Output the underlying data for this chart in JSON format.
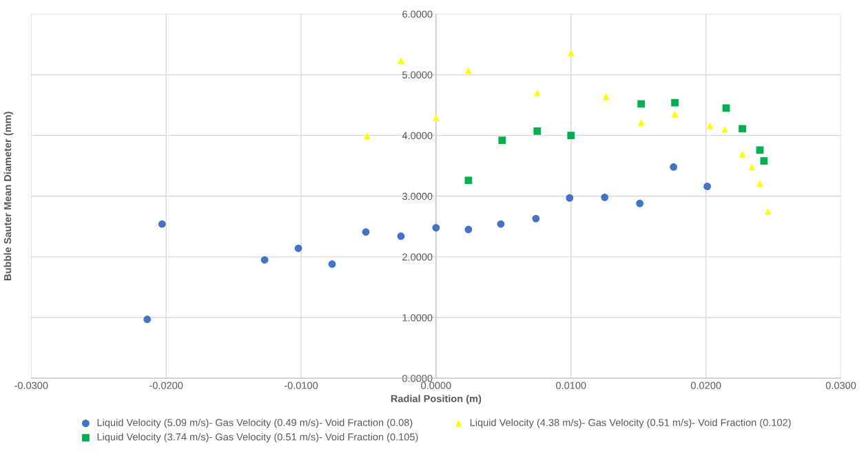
{
  "chart_data": {
    "type": "scatter",
    "xlabel": "Radial Position (m)",
    "ylabel": "Bubble Sauter Mean Diameter (mm)",
    "xlim": [
      -0.03,
      0.03
    ],
    "ylim": [
      0,
      6
    ],
    "xticks": [
      {
        "value": -0.03,
        "label": "-0.0300"
      },
      {
        "value": -0.02,
        "label": "-0.0200"
      },
      {
        "value": -0.01,
        "label": "-0.0100"
      },
      {
        "value": 0,
        "label": "0.0000"
      },
      {
        "value": 0.01,
        "label": "0.0100"
      },
      {
        "value": 0.02,
        "label": "0.0200"
      },
      {
        "value": 0.03,
        "label": "0.0300"
      }
    ],
    "yticks": [
      {
        "value": 0,
        "label": "0.0000"
      },
      {
        "value": 1,
        "label": "1.0000"
      },
      {
        "value": 2,
        "label": "2.0000"
      },
      {
        "value": 3,
        "label": "3.0000"
      },
      {
        "value": 4,
        "label": "4.0000"
      },
      {
        "value": 5,
        "label": "5.0000"
      },
      {
        "value": 6,
        "label": "6.0000"
      }
    ],
    "grid": true,
    "legend": "bottom",
    "series": [
      {
        "name": "Liquid Velocity (5.09 m/s)- Gas Velocity (0.49 m/s)- Void Fraction (0.08)",
        "color": "#4472c4",
        "marker": "circle",
        "x": [
          -0.0214,
          -0.0203,
          -0.0127,
          -0.0102,
          -0.0077,
          -0.0052,
          -0.0026,
          0.0,
          0.0024,
          0.0048,
          0.0074,
          0.0099,
          0.0125,
          0.0151,
          0.0176,
          0.0201
        ],
        "values": [
          0.97,
          2.54,
          1.95,
          2.14,
          1.88,
          2.41,
          2.34,
          2.48,
          2.45,
          2.54,
          2.63,
          2.97,
          2.98,
          2.88,
          3.48,
          3.16
        ]
      },
      {
        "name": "Liquid Velocity (4.38 m/s)- Gas Velocity (0.51 m/s)- Void Fraction (0.102)",
        "color": "#ffff00",
        "marker": "triangle",
        "x": [
          -0.0051,
          -0.0026,
          0.0,
          0.0024,
          0.0075,
          0.01,
          0.0126,
          0.0152,
          0.0177,
          0.0203,
          0.0214,
          0.0227,
          0.0234,
          0.024,
          0.0246
        ],
        "values": [
          3.99,
          5.23,
          4.29,
          5.07,
          4.7,
          5.36,
          4.64,
          4.21,
          4.35,
          4.16,
          4.1,
          3.69,
          3.48,
          3.21,
          2.75
        ]
      },
      {
        "name": "Liquid Velocity (3.74 m/s)- Gas Velocity (0.51 m/s)- Void Fraction (0.105)",
        "color": "#00b050",
        "marker": "square",
        "x": [
          0.0024,
          0.0049,
          0.0075,
          0.01,
          0.0152,
          0.0177,
          0.0215,
          0.0227,
          0.024,
          0.0243
        ],
        "values": [
          3.26,
          3.92,
          4.07,
          4.0,
          4.52,
          4.54,
          4.45,
          4.11,
          3.76,
          3.58
        ]
      }
    ]
  }
}
